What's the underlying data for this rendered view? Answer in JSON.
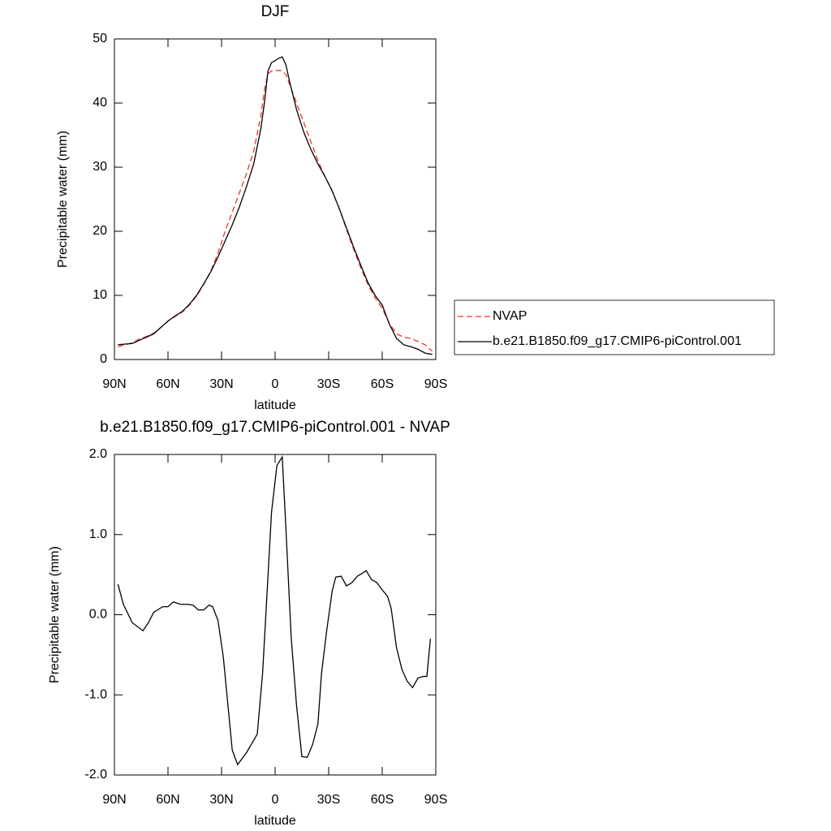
{
  "chart_data": [
    {
      "type": "line",
      "title": "DJF",
      "xlabel": "latitude",
      "ylabel": "Precipitable water (mm)",
      "x": [
        88,
        84,
        80,
        76,
        72,
        68,
        64,
        60,
        56,
        52,
        48,
        44,
        40,
        36,
        32,
        28,
        24,
        20,
        16,
        12,
        8,
        6,
        4,
        2,
        0,
        -2,
        -4,
        -6,
        -8,
        -12,
        -16,
        -20,
        -24,
        -28,
        -32,
        -36,
        -40,
        -44,
        -48,
        -52,
        -56,
        -60,
        -64,
        -68,
        -72,
        -76,
        -80,
        -84,
        -88
      ],
      "series": [
        {
          "name": "NVAP",
          "color": "#e8352f",
          "dashed": true,
          "values": [
            2.0,
            2.3,
            2.6,
            3.2,
            3.6,
            4.1,
            5.0,
            6.0,
            6.7,
            7.4,
            8.5,
            9.9,
            11.7,
            13.8,
            16.6,
            20.0,
            23.0,
            26.0,
            29.0,
            32.5,
            38.0,
            42.0,
            44.6,
            45.0,
            45.1,
            45.1,
            45.0,
            44.5,
            43.0,
            40.0,
            37.0,
            34.0,
            31.0,
            28.5,
            26.2,
            23.5,
            20.3,
            17.2,
            14.3,
            11.7,
            9.6,
            8.0,
            5.6,
            4.0,
            3.5,
            3.3,
            2.8,
            2.3,
            1.3
          ]
        },
        {
          "name": "b.e21.B1850.f09_g17.CMIP6-piControl.001",
          "color": "#000000",
          "dashed": false,
          "values": [
            2.3,
            2.4,
            2.5,
            3.0,
            3.5,
            4.0,
            5.0,
            6.0,
            6.8,
            7.5,
            8.6,
            10.0,
            11.8,
            13.7,
            16.0,
            18.5,
            21.0,
            23.8,
            27.0,
            30.5,
            36.0,
            40.0,
            45.0,
            46.3,
            46.6,
            47.0,
            47.2,
            46.0,
            43.5,
            39.0,
            35.5,
            32.8,
            30.5,
            28.5,
            26.3,
            23.5,
            20.5,
            17.5,
            14.7,
            12.0,
            10.0,
            8.5,
            5.5,
            3.3,
            2.3,
            2.0,
            1.6,
            1.0,
            0.8
          ]
        }
      ],
      "xlim": [
        90,
        -90
      ],
      "xticks": [
        {
          "value": 90,
          "label": "90N"
        },
        {
          "value": 60,
          "label": "60N"
        },
        {
          "value": 30,
          "label": "30N"
        },
        0,
        {
          "value": -30,
          "label": "30S"
        },
        {
          "value": -60,
          "label": "60S"
        },
        {
          "value": -90,
          "label": "90S"
        }
      ],
      "ylim": [
        0,
        50
      ],
      "yticks": [
        0,
        10,
        20,
        30,
        40,
        50
      ],
      "legend": "right"
    },
    {
      "type": "line",
      "title": "b.e21.B1850.f09_g17.CMIP6-piControl.001 - NVAP",
      "xlabel": "latitude",
      "ylabel": "Precipitable water (mm)",
      "x": [
        88,
        85,
        80,
        74,
        71,
        68,
        63,
        60,
        57,
        53,
        49,
        46,
        43,
        40,
        37,
        35,
        32,
        29,
        24,
        21,
        16,
        10,
        7,
        4,
        2,
        -1,
        -4,
        -6,
        -9,
        -12,
        -15,
        -18,
        -21,
        -24,
        -26,
        -29,
        -32,
        -34,
        -37,
        -40,
        -43,
        -46,
        -49,
        -51,
        -54,
        -57,
        -60,
        -63,
        -65,
        -68,
        -71,
        -74,
        -77,
        -80,
        -83,
        -85,
        -87
      ],
      "series": [
        {
          "color": "#000000",
          "dashed": false,
          "values": [
            0.38,
            0.13,
            -0.1,
            -0.2,
            -0.1,
            0.03,
            0.1,
            0.1,
            0.16,
            0.13,
            0.13,
            0.12,
            0.06,
            0.06,
            0.12,
            0.1,
            -0.07,
            -0.53,
            -1.69,
            -1.87,
            -1.72,
            -1.49,
            -0.73,
            0.48,
            1.28,
            1.86,
            1.97,
            1.1,
            -0.28,
            -1.13,
            -1.77,
            -1.78,
            -1.62,
            -1.36,
            -0.73,
            -0.18,
            0.3,
            0.47,
            0.48,
            0.36,
            0.4,
            0.48,
            0.52,
            0.55,
            0.44,
            0.4,
            0.31,
            0.23,
            0.08,
            -0.41,
            -0.68,
            -0.83,
            -0.91,
            -0.79,
            -0.77,
            -0.77,
            -0.3
          ]
        }
      ],
      "xlim": [
        90,
        -90
      ],
      "xticks": [
        {
          "value": 90,
          "label": "90N"
        },
        {
          "value": 60,
          "label": "60N"
        },
        {
          "value": 30,
          "label": "30N"
        },
        0,
        {
          "value": -30,
          "label": "30S"
        },
        {
          "value": -60,
          "label": "60S"
        },
        {
          "value": -90,
          "label": "90S"
        }
      ],
      "ylim": [
        -2,
        2
      ],
      "yticks": [
        {
          "value": -2,
          "label": "-2.0"
        },
        {
          "value": -1,
          "label": "-1.0"
        },
        {
          "value": 0,
          "label": "0.0"
        },
        {
          "value": 1,
          "label": "1.0"
        },
        {
          "value": 2,
          "label": "2.0"
        }
      ]
    }
  ]
}
